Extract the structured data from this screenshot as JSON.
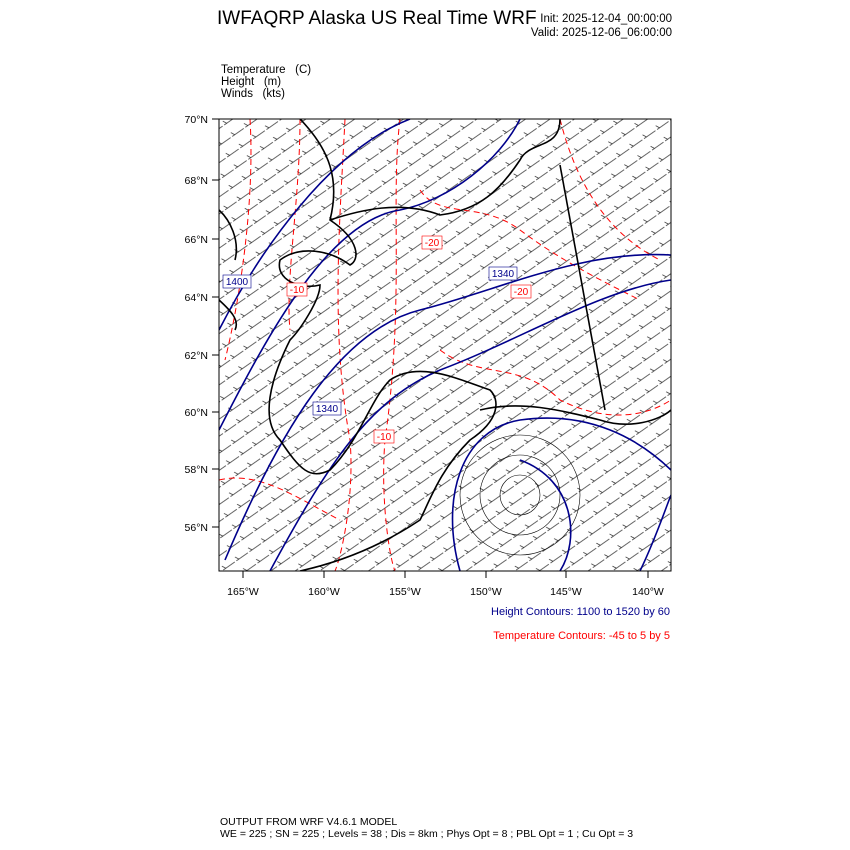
{
  "header": {
    "title": "IWFAQRP Alaska US Real Time WRF",
    "init": "Init: 2025-12-04_00:00:00",
    "valid": "Valid: 2025-12-06_06:00:00"
  },
  "fields": [
    {
      "name": "Temperature",
      "unit": "(C)"
    },
    {
      "name": "Height",
      "unit": "(m)"
    },
    {
      "name": "Winds",
      "unit": "(kts)"
    }
  ],
  "map": {
    "lat_labels": [
      "70°N",
      "68°N",
      "66°N",
      "64°N",
      "62°N",
      "60°N",
      "58°N",
      "56°N"
    ],
    "lon_labels": [
      "165°W",
      "160°W",
      "155°W",
      "150°W",
      "145°W",
      "140°W"
    ],
    "height_contour_labels": [
      "1400",
      "1340",
      "1340"
    ],
    "temperature_contour_labels": [
      "-10",
      "-20",
      "-20",
      "-10"
    ],
    "colors": {
      "height": "#00008b",
      "temperature": "#ff0000",
      "coast": "#000000",
      "barbs": "#000000"
    }
  },
  "info": {
    "height_contours": "Height Contours: 1100 to 1520 by 60",
    "temperature_contours": "Temperature Contours: -45 to 5 by 5"
  },
  "footer": {
    "line1": "OUTPUT FROM WRF V4.6.1 MODEL",
    "line2": "WE = 225 ; SN = 225 ; Levels = 38 ; Dis = 8km ; Phys Opt = 8 ; PBL Opt = 1 ; Cu Opt = 3"
  }
}
